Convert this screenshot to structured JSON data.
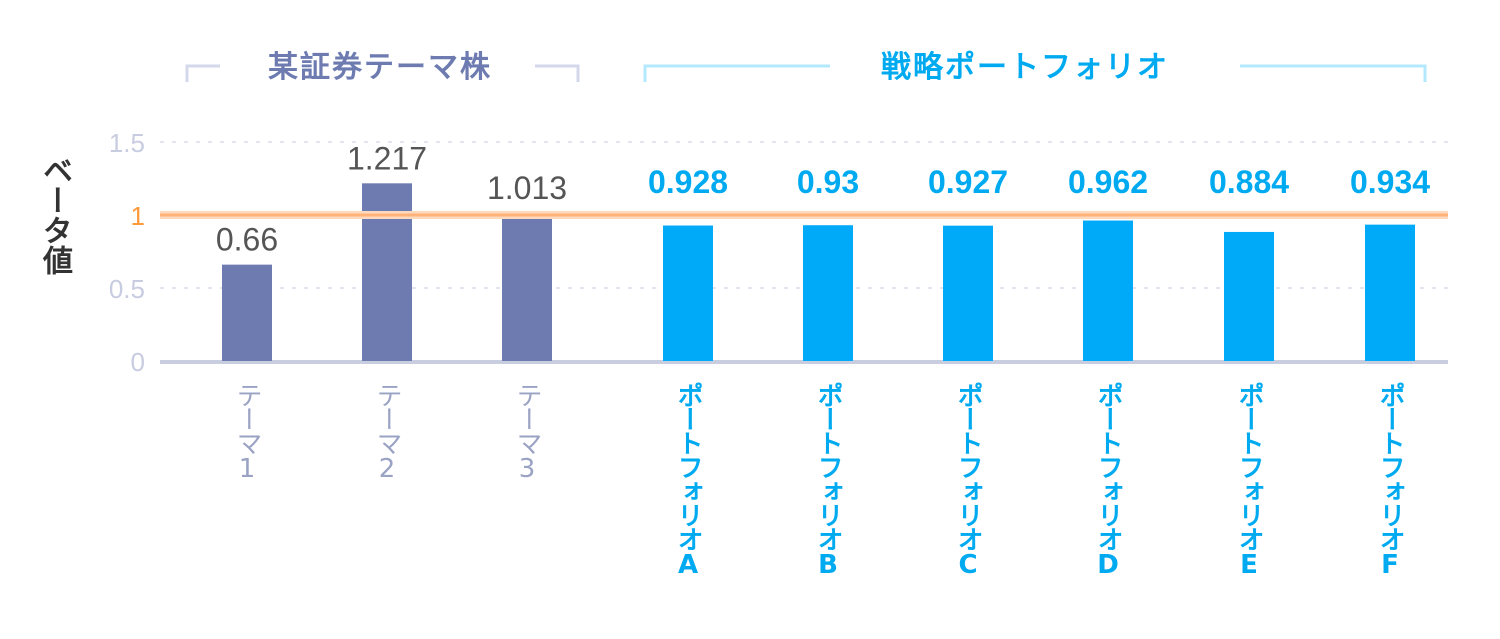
{
  "chart_data": {
    "type": "bar",
    "ylabel": "ベータ値",
    "ylim": [
      0,
      1.5
    ],
    "yticks": [
      "0",
      "0.5",
      "1",
      "1.5"
    ],
    "reference_line": {
      "value": 1,
      "color": "#ffb27a"
    },
    "grid": true,
    "groups": [
      {
        "label": "某証券テーマ株",
        "color": "#6d7bb0",
        "line_color": "#d3d8ea",
        "text_color": "#6d7bb0"
      },
      {
        "label": "戦略ポートフォリオ",
        "color": "#00aaf8",
        "line_color": "#b3e9fc",
        "text_color": "#00aaf0"
      }
    ],
    "categories": [
      "テーマ1",
      "テーマ2",
      "テーマ3",
      "ポートフォリオA",
      "ポートフォリオB",
      "ポートフォリオC",
      "ポートフォリオD",
      "ポートフォリオE",
      "ポートフォリオF"
    ],
    "values": [
      0.66,
      1.217,
      1.013,
      0.928,
      0.93,
      0.927,
      0.962,
      0.884,
      0.934
    ],
    "value_labels": [
      "0.66",
      "1.217",
      "1.013",
      "0.928",
      "0.93",
      "0.927",
      "0.962",
      "0.884",
      "0.934"
    ],
    "group_index": [
      0,
      0,
      0,
      1,
      1,
      1,
      1,
      1,
      1
    ]
  }
}
